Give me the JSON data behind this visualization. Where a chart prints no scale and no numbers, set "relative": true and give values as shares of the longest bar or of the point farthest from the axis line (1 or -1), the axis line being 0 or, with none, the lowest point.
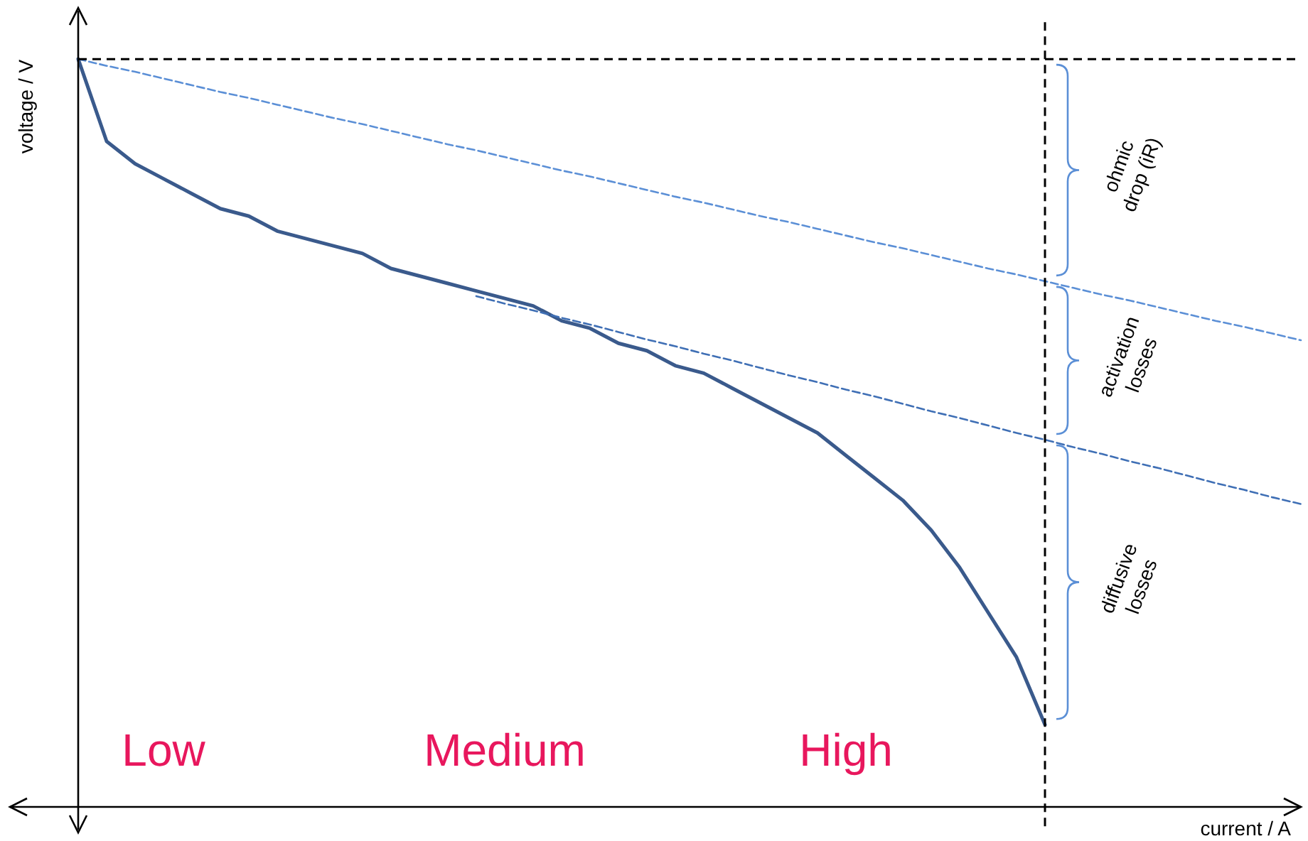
{
  "chart_data": {
    "type": "line",
    "relative": true,
    "xlabel": "current / A",
    "ylabel": "voltage / V",
    "marker": "none",
    "categories": [
      null,
      null,
      null,
      null,
      null,
      null,
      null,
      null,
      null,
      null,
      null,
      null,
      null,
      null,
      null,
      null,
      null,
      null,
      null,
      null,
      null,
      null,
      null,
      null,
      null,
      null,
      null,
      null,
      null,
      null,
      null,
      null,
      null,
      null,
      null,
      null,
      null,
      null,
      null,
      null,
      null,
      null,
      null,
      null
    ],
    "series": [
      {
        "color": "#3a5a8c",
        "line_style": "solid",
        "values": [
          1,
          0.89,
          0.86,
          0.84,
          0.82,
          0.8,
          0.79,
          0.77,
          0.76,
          0.75,
          0.74,
          0.72,
          0.71,
          0.7,
          0.69,
          0.68,
          0.67,
          0.65,
          0.64,
          0.62,
          0.61,
          0.59,
          0.58,
          0.56,
          0.54,
          0.52,
          0.5,
          0.47,
          0.44,
          0.41,
          0.37,
          0.32,
          0.26,
          0.2,
          0.11,
          null,
          null,
          null,
          null,
          null,
          null,
          null,
          null,
          null
        ]
      },
      {
        "color": "#5b8fd6",
        "line_style": "dashed",
        "values": [
          1,
          0.991,
          0.983,
          0.974,
          0.965,
          0.956,
          0.948,
          0.939,
          0.93,
          0.921,
          0.913,
          0.904,
          0.895,
          0.886,
          0.878,
          0.869,
          0.86,
          0.851,
          0.843,
          0.834,
          0.825,
          0.816,
          0.808,
          0.799,
          0.79,
          0.782,
          0.773,
          0.764,
          0.755,
          0.747,
          0.738,
          0.729,
          0.72,
          0.712,
          0.703,
          0.694,
          0.685,
          0.677,
          0.668,
          0.659,
          0.65,
          0.642,
          0.633,
          0.624
        ]
      },
      {
        "color": "#3f6fb5",
        "line_style": "dashed",
        "values": [
          null,
          null,
          null,
          null,
          null,
          null,
          null,
          null,
          null,
          null,
          null,
          null,
          null,
          null,
          0.683,
          0.673,
          0.664,
          0.654,
          0.645,
          0.635,
          0.625,
          0.616,
          0.606,
          0.597,
          0.587,
          0.577,
          0.568,
          0.558,
          0.549,
          0.539,
          0.529,
          0.52,
          0.51,
          0.5,
          0.491,
          0.481,
          0.472,
          0.462,
          0.453,
          0.443,
          0.433,
          0.424,
          0.414,
          0.405
        ]
      }
    ],
    "annotations": [
      "ohmic drop (iR)",
      "activation losses",
      "diffusive losses",
      "Low",
      "Medium",
      "High"
    ]
  }
}
